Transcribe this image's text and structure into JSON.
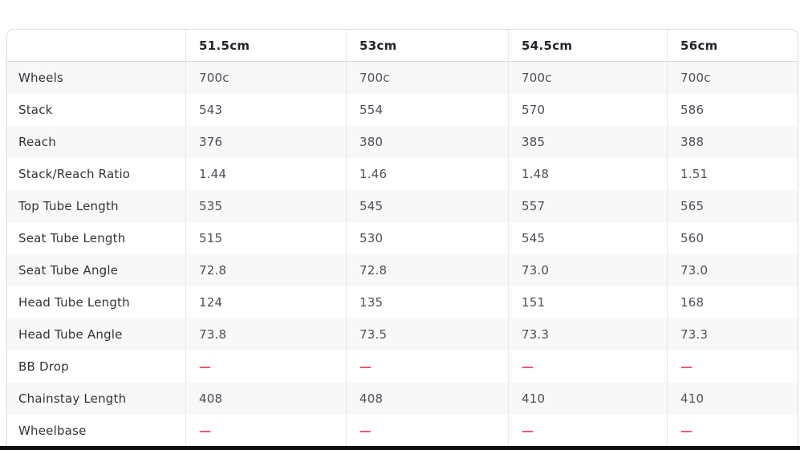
{
  "chart_data": {
    "type": "table",
    "corner_label": "",
    "columns": [
      "51.5cm",
      "53cm",
      "54.5cm",
      "56cm"
    ],
    "rows": [
      {
        "label": "Wheels",
        "values": [
          "700c",
          "700c",
          "700c",
          "700c"
        ]
      },
      {
        "label": "Stack",
        "values": [
          "543",
          "554",
          "570",
          "586"
        ]
      },
      {
        "label": "Reach",
        "values": [
          "376",
          "380",
          "385",
          "388"
        ]
      },
      {
        "label": "Stack/Reach Ratio",
        "values": [
          "1.44",
          "1.46",
          "1.48",
          "1.51"
        ]
      },
      {
        "label": "Top Tube Length",
        "values": [
          "535",
          "545",
          "557",
          "565"
        ]
      },
      {
        "label": "Seat Tube Length",
        "values": [
          "515",
          "530",
          "545",
          "560"
        ]
      },
      {
        "label": "Seat Tube Angle",
        "values": [
          "72.8",
          "72.8",
          "73.0",
          "73.0"
        ]
      },
      {
        "label": "Head Tube Length",
        "values": [
          "124",
          "135",
          "151",
          "168"
        ]
      },
      {
        "label": "Head Tube Angle",
        "values": [
          "73.8",
          "73.5",
          "73.3",
          "73.3"
        ]
      },
      {
        "label": "BB Drop",
        "values": [
          "—",
          "—",
          "—",
          "—"
        ]
      },
      {
        "label": "Chainstay Length",
        "values": [
          "408",
          "408",
          "410",
          "410"
        ]
      },
      {
        "label": "Wheelbase",
        "values": [
          "—",
          "—",
          "—",
          "—"
        ]
      }
    ],
    "missing_value": "—",
    "layout": {
      "striped_rows": true,
      "legend": "none",
      "grid": "column-dividers",
      "header_position": "top"
    }
  },
  "colors": {
    "background": "#ffffff",
    "missing_dash": "#ee536b",
    "stripe": "#f8f8f9",
    "border": "#dcdcdc",
    "divider": "#e7e7e8",
    "header_text": "#27222e",
    "label_text": "#35313a",
    "value_text": "#524d58",
    "bottom_bar": "#0d0d0d"
  }
}
